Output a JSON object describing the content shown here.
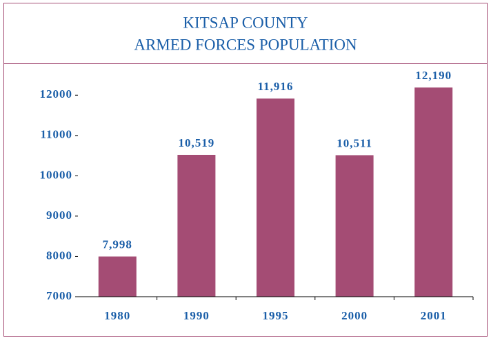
{
  "chart_data": {
    "type": "bar",
    "title": "KITSAP COUNTY",
    "subtitle": "ARMED FORCES POPULATION",
    "categories": [
      "1980",
      "1990",
      "1995",
      "2000",
      "2001"
    ],
    "values": [
      7998,
      10519,
      11916,
      10511,
      12190
    ],
    "value_labels": [
      "7,998",
      "10,519",
      "11,916",
      "10,511",
      "12,190"
    ],
    "color": "#a44c74",
    "ylim": [
      7000,
      12500
    ],
    "yticks": [
      7000,
      8000,
      9000,
      10000,
      11000,
      12000
    ],
    "grid": false
  }
}
